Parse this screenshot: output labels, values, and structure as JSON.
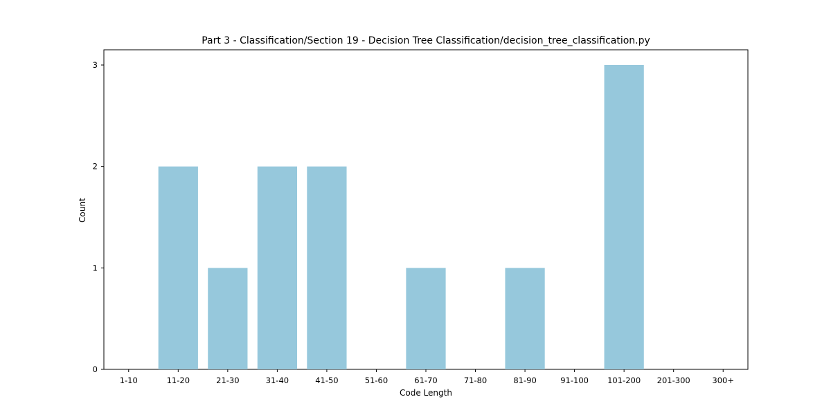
{
  "chart_data": {
    "type": "bar",
    "title": "Part 3 - Classification/Section 19 - Decision Tree Classification/decision_tree_classification.py",
    "xlabel": "Code Length",
    "ylabel": "Count",
    "categories": [
      "1-10",
      "11-20",
      "21-30",
      "31-40",
      "41-50",
      "51-60",
      "61-70",
      "71-80",
      "81-90",
      "91-100",
      "101-200",
      "201-300",
      "300+"
    ],
    "values": [
      0,
      2,
      1,
      2,
      2,
      0,
      1,
      0,
      1,
      0,
      3,
      0,
      0
    ],
    "yticks": [
      "0",
      "1",
      "2",
      "3"
    ],
    "ylim": [
      0,
      3.15
    ],
    "bar_color": "#96c8dc",
    "grid": false,
    "legend": false
  }
}
